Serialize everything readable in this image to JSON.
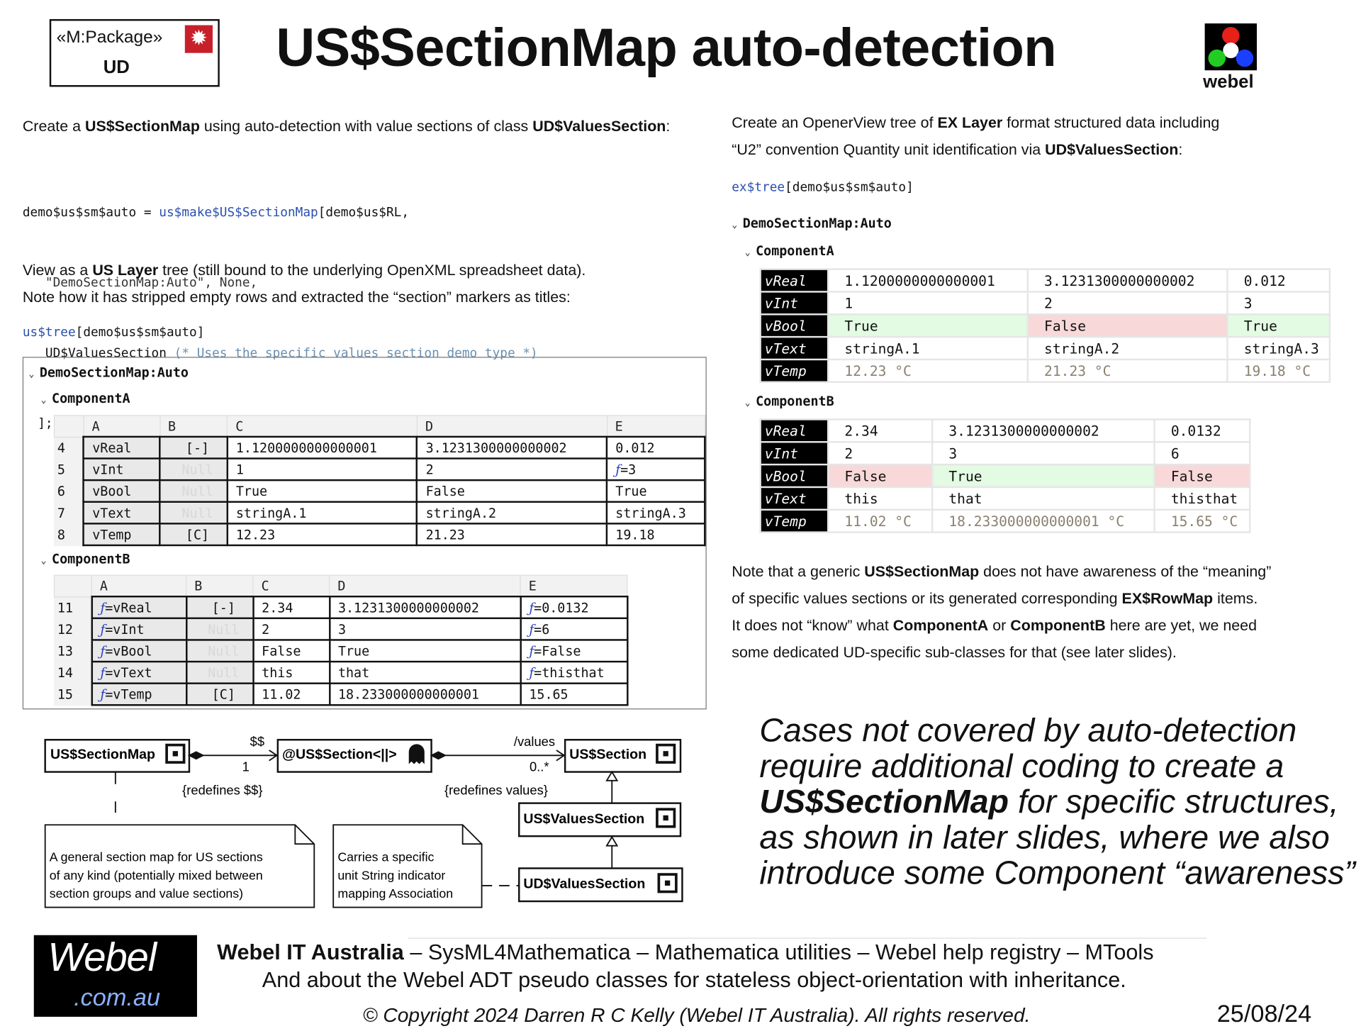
{
  "header": {
    "package_stereotype": "«M:Package»",
    "package_name": "UD",
    "title": "US$SectionMap auto-detection",
    "logo_text": "webel"
  },
  "left": {
    "intro": [
      "Create a ",
      "US$SectionMap",
      " using auto-detection with value sections of class ",
      "UD$ValuesSection",
      ":"
    ],
    "code": {
      "l1_var": "demo$us$sm$auto = ",
      "l1_fn": "us$make$US$SectionMap",
      "l1_rest": "[demo$us$RL,",
      "l2": "   \"DemoSectionMap:Auto\", None,",
      "l3_a": "   UD$ValuesSection ",
      "l3_comment": "(* Uses the specific values section demo type *)",
      "l4": "  ];"
    },
    "view_para": [
      "View as a ",
      "US Layer",
      " tree (still bound to the underlying OpenXML spreadsheet data)."
    ],
    "view_para2": "Note how it has stripped empty rows and extracted the “section” markers as titles:",
    "tree_call_fn": "us$tree",
    "tree_call_arg": "[demo$us$sm$auto]",
    "tree": {
      "root": "DemoSectionMap:Auto",
      "sections": [
        {
          "title": "ComponentA",
          "headers": [
            "A",
            "B",
            "C",
            "D",
            "E"
          ],
          "rows": [
            [
              "4",
              "vReal",
              "[-]",
              "1.1200000000000001",
              "3.1231300000000002",
              "0.012"
            ],
            [
              "5",
              "vInt",
              "Null",
              "1",
              "2",
              "ƒ=3"
            ],
            [
              "6",
              "vBool",
              "Null",
              "True",
              "False",
              "True"
            ],
            [
              "7",
              "vText",
              "Null",
              "stringA.1",
              "stringA.2",
              "stringA.3"
            ],
            [
              "8",
              "vTemp",
              "[C]",
              "12.23",
              "21.23",
              "19.18"
            ]
          ]
        },
        {
          "title": "ComponentB",
          "headers": [
            "A",
            "B",
            "C",
            "D",
            "E"
          ],
          "rows": [
            [
              "11",
              "ƒ=vReal",
              "[-]",
              "2.34",
              "3.1231300000000002",
              "ƒ=0.0132"
            ],
            [
              "12",
              "ƒ=vInt",
              "Null",
              "2",
              "3",
              "ƒ=6"
            ],
            [
              "13",
              "ƒ=vBool",
              "Null",
              "False",
              "True",
              "ƒ=False"
            ],
            [
              "14",
              "ƒ=vText",
              "Null",
              "this",
              "that",
              "ƒ=thisthat"
            ],
            [
              "15",
              "ƒ=vTemp",
              "[C]",
              "11.02",
              "18.233000000000001",
              "15.65"
            ]
          ]
        }
      ]
    }
  },
  "right": {
    "intro1": [
      "Create an OpenerView tree of ",
      "EX Layer",
      " format structured data including"
    ],
    "intro2": [
      "“U2” convention Quantity unit identification via ",
      "UD$ValuesSection",
      ":"
    ],
    "tree_call_fn": "ex$tree",
    "tree_call_arg": "[demo$us$sm$auto]",
    "tree": {
      "root": "DemoSectionMap:Auto",
      "sections": [
        {
          "title": "ComponentA",
          "rows": [
            [
              "vReal",
              "1.1200000000000001",
              "3.1231300000000002",
              "0.012"
            ],
            [
              "vInt",
              "1",
              "2",
              "3"
            ],
            [
              "vBool",
              "True",
              "False",
              "True"
            ],
            [
              "vText",
              "stringA.1",
              "stringA.2",
              "stringA.3"
            ],
            [
              "vTemp",
              "12.23 °C",
              "21.23 °C",
              "19.18 °C"
            ]
          ]
        },
        {
          "title": "ComponentB",
          "rows": [
            [
              "vReal",
              "2.34",
              "3.1231300000000002",
              "0.0132"
            ],
            [
              "vInt",
              "2",
              "3",
              "6"
            ],
            [
              "vBool",
              "False",
              "True",
              "False"
            ],
            [
              "vText",
              "this",
              "that",
              "thisthat"
            ],
            [
              "vTemp",
              "11.02 °C",
              "18.233000000000001 °C",
              "15.65 °C"
            ]
          ]
        }
      ]
    },
    "note": [
      [
        "Note that a generic ",
        "US$SectionMap",
        " does not have awareness of the “meaning”"
      ],
      [
        "of specific values sections or its generated corresponding ",
        "EX$RowMap",
        " items."
      ],
      [
        "It does not “know” what ",
        "ComponentA",
        " or ",
        "ComponentB",
        " here are yet, we need"
      ],
      [
        "some dedicated UD-specific sub-classes for that (see later slides)."
      ]
    ],
    "callout": [
      [
        "Cases not covered by auto-detection"
      ],
      [
        "require additional coding to create a"
      ],
      [
        "US$SectionMap",
        " for specific structures,"
      ],
      [
        "as shown in later slides, where we also"
      ],
      [
        "introduce some Component “awareness”"
      ]
    ]
  },
  "diagram": {
    "blocks": {
      "section_map": "US$SectionMap",
      "section_ghost": "@US$Section<||>",
      "section": "US$Section",
      "values_section": "US$ValuesSection",
      "ud_values_section": "UD$ValuesSection"
    },
    "labels": {
      "role1": "$$",
      "mult1": "1",
      "redef1": "{redefines $$}",
      "role2": "/values",
      "mult2": "0..*",
      "redef2": "{redefines values}"
    },
    "note1": [
      "A general section map for US sections",
      "of any kind (potentially mixed between",
      "section groups and value sections)"
    ],
    "note2": [
      "Carries a specific",
      "unit String indicator",
      "mapping Association"
    ]
  },
  "footer": {
    "logo_main": "Webel",
    "logo_sub": ".com.au",
    "line1_bold": "Webel IT Australia",
    "line1_rest": " – SysML4Mathematica – Mathematica utilities – Webel help registry – MTools",
    "line2": "And about the Webel ADT pseudo classes for stateless object-orientation with inheritance.",
    "copyright": "© Copyright 2024 Darren R C Kelly (Webel IT Australia). All rights reserved.",
    "date": "25/08/24"
  },
  "colors": {
    "true_bg": "#e2fbe2",
    "false_bg": "#f8d8d8",
    "code_blue": "#2a4fb0"
  }
}
